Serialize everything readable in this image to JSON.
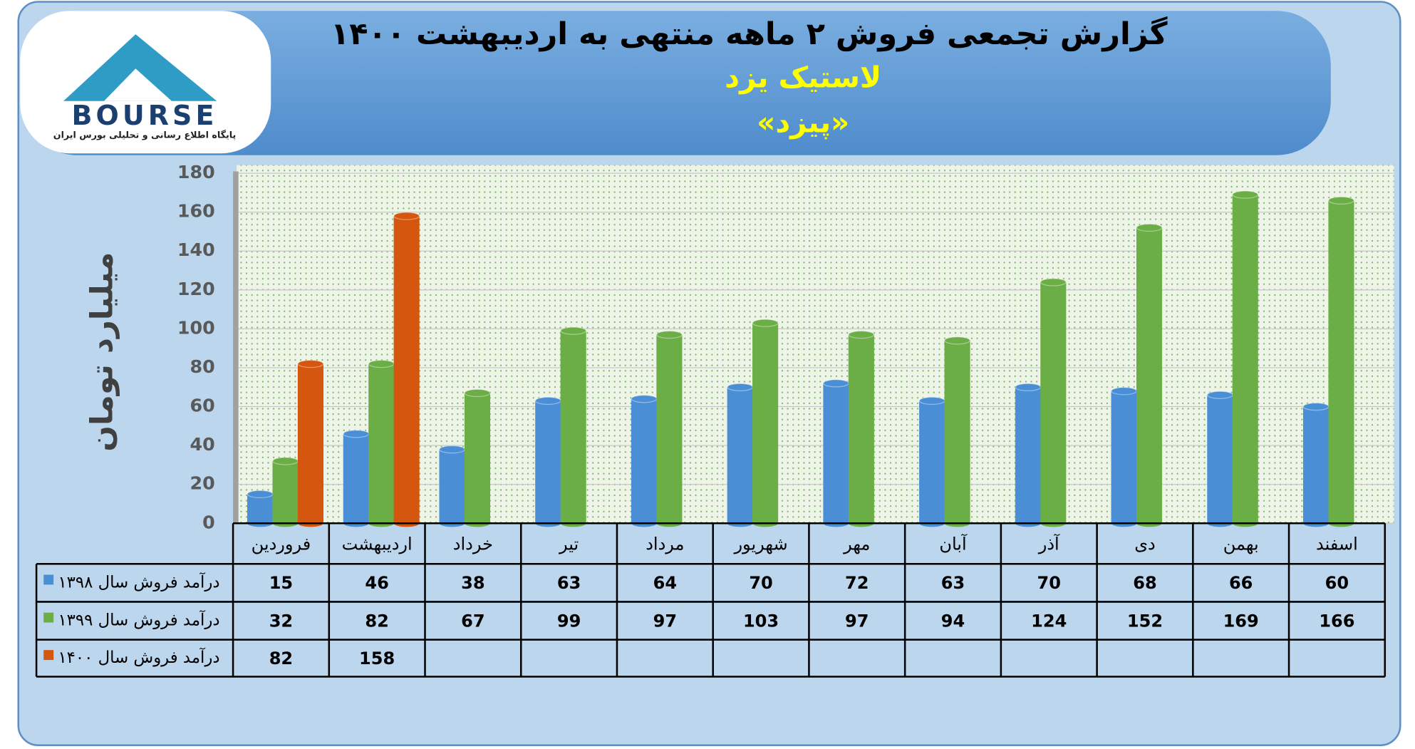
{
  "logo": {
    "name": "BOURSE",
    "tagline": "پایگاه اطلاع رسانی و تحلیلی بورس ایران"
  },
  "chart_data": {
    "type": "bar",
    "title": "گزارش تجمعی فروش ۲ ماهه منتهی به اردیبهشت ۱۴۰۰",
    "subtitle": "لاستیک یزد",
    "symbol": "«پیزد»",
    "y_label": "میلیارد تومان",
    "categories": [
      "فروردین",
      "اردیبهشت",
      "خرداد",
      "تیر",
      "مرداد",
      "شهریور",
      "مهر",
      "آبان",
      "آذر",
      "دی",
      "بهمن",
      "اسفند"
    ],
    "series": [
      {
        "name": "درآمد فروش سال ۱۳۹۸",
        "color": "#4a8fd6",
        "values": [
          15,
          46,
          38,
          63,
          64,
          70,
          72,
          63,
          70,
          68,
          66,
          60
        ]
      },
      {
        "name": "درآمد فروش سال ۱۳۹۹",
        "color": "#6aae45",
        "values": [
          32,
          82,
          67,
          99,
          97,
          103,
          97,
          94,
          124,
          152,
          169,
          166
        ]
      },
      {
        "name": "درآمد فروش سال ۱۴۰۰",
        "color": "#d4560f",
        "values": [
          82,
          158,
          null,
          null,
          null,
          null,
          null,
          null,
          null,
          null,
          null,
          null
        ]
      }
    ],
    "ylim": [
      0,
      180
    ],
    "yticks": [
      0,
      20,
      40,
      60,
      80,
      100,
      120,
      140,
      160,
      180
    ],
    "grid": true
  }
}
